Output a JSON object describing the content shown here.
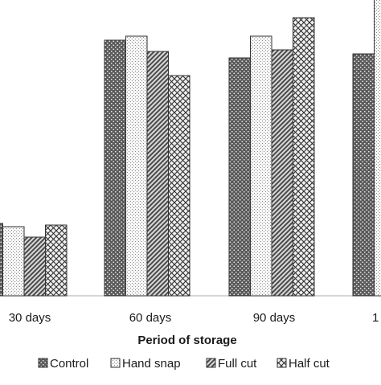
{
  "chart_data": {
    "type": "bar",
    "title": "",
    "xlabel": "Period of storage",
    "ylabel": "",
    "categories": [
      "30 days",
      "60 days",
      "90 days",
      "1"
    ],
    "series": [
      {
        "name": "Control",
        "values": [
          90,
          318,
          296,
          301
        ]
      },
      {
        "name": "Hand snap",
        "values": [
          86,
          323,
          323,
          416
        ]
      },
      {
        "name": "Full cut",
        "values": [
          73,
          304,
          306,
          null
        ]
      },
      {
        "name": "Half cut",
        "values": [
          88,
          274,
          346,
          null
        ]
      }
    ],
    "ylim": [
      0,
      450
    ],
    "grid": false,
    "legend_position": "bottom"
  },
  "colors": {
    "control_fill": "#555555",
    "hand_snap_fill": "#f4f4f4",
    "full_cut_fill": "#aaaaaa",
    "half_cut_fill": "#dddddd",
    "axis": "#bdbdbd",
    "bar_outline": "#333333"
  }
}
